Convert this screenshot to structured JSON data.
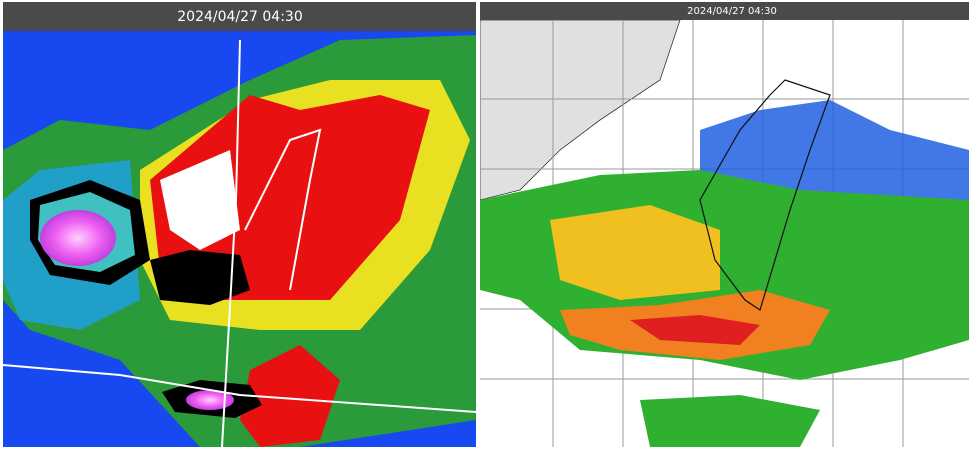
{
  "satellite_panel": {
    "timestamp": "2024/04/27 04:30"
  },
  "radar_panel": {
    "timestamp": "2024/04/27 04:30"
  }
}
